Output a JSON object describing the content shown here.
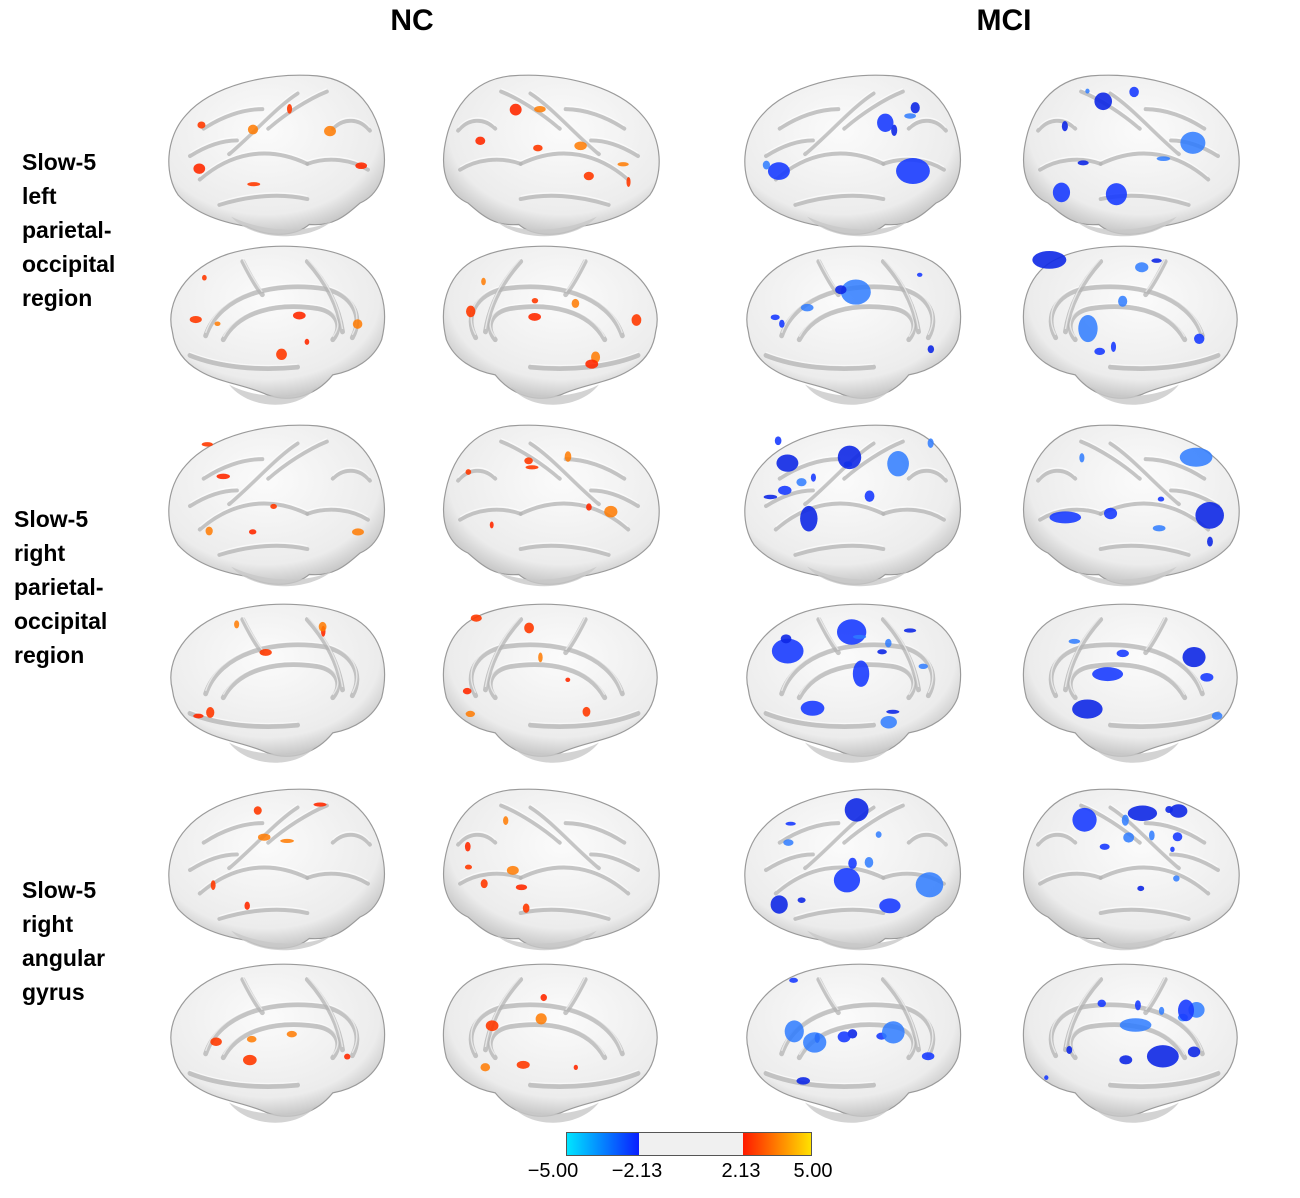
{
  "columns": [
    "NC",
    "MCI"
  ],
  "rows": [
    {
      "label_lines": [
        "Slow-5",
        "left",
        "parietal-",
        "occipital",
        "region"
      ]
    },
    {
      "label_lines": [
        "Slow-5",
        "right",
        "parietal-",
        "occipital",
        "region"
      ]
    },
    {
      "label_lines": [
        "Slow-5",
        "right",
        "angular",
        "gyrus"
      ]
    }
  ],
  "colorbar": {
    "ticks": [
      "−5.00",
      "−2.13",
      "2.13",
      "5.00"
    ],
    "colors": {
      "neg_min": "#00e5ff",
      "neg_max": "#0a1fff",
      "neutral": "#f0f0f0",
      "pos_min": "#ff1a00",
      "pos_max": "#ffe100"
    }
  },
  "surface_color": "#ececec"
}
